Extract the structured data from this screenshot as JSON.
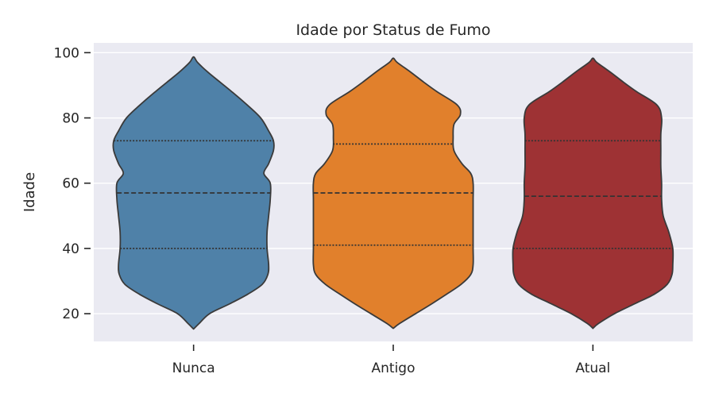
{
  "chart_data": {
    "type": "violin",
    "title": "Idade por Status de Fumo",
    "xlabel": "",
    "ylabel": "Idade",
    "ylim": [
      11.5,
      103
    ],
    "yticks": [
      20,
      40,
      60,
      80,
      100
    ],
    "grid": true,
    "legend": "none",
    "categories": [
      "Nunca",
      "Antigo",
      "Atual"
    ],
    "colors": [
      "#4f81a8",
      "#e1802c",
      "#9e3234"
    ],
    "series": [
      {
        "category": "Nunca",
        "min": 15.3,
        "max": 98.7,
        "quartiles": [
          40,
          57,
          73
        ],
        "profile": [
          [
            15.3,
            0
          ],
          [
            17,
            0.07
          ],
          [
            20,
            0.2
          ],
          [
            23,
            0.45
          ],
          [
            26,
            0.68
          ],
          [
            29,
            0.86
          ],
          [
            32,
            0.93
          ],
          [
            35,
            0.94
          ],
          [
            40,
            0.92
          ],
          [
            45,
            0.92
          ],
          [
            50,
            0.94
          ],
          [
            55,
            0.96
          ],
          [
            60,
            0.96
          ],
          [
            63,
            0.88
          ],
          [
            66,
            0.94
          ],
          [
            70,
            1.0
          ],
          [
            73,
            1.0
          ],
          [
            76,
            0.94
          ],
          [
            80,
            0.84
          ],
          [
            84,
            0.67
          ],
          [
            88,
            0.48
          ],
          [
            91,
            0.33
          ],
          [
            94,
            0.18
          ],
          [
            97,
            0.05
          ],
          [
            98.7,
            0
          ]
        ]
      },
      {
        "category": "Antigo",
        "min": 15.5,
        "max": 98.3,
        "quartiles": [
          41,
          57,
          72
        ],
        "profile": [
          [
            15.5,
            0
          ],
          [
            17,
            0.08
          ],
          [
            20,
            0.28
          ],
          [
            23,
            0.48
          ],
          [
            26,
            0.67
          ],
          [
            29,
            0.85
          ],
          [
            32,
            0.97
          ],
          [
            35,
            1.0
          ],
          [
            40,
            1.0
          ],
          [
            45,
            1.0
          ],
          [
            50,
            1.0
          ],
          [
            55,
            1.0
          ],
          [
            60,
            1.0
          ],
          [
            63,
            0.97
          ],
          [
            66,
            0.86
          ],
          [
            70,
            0.76
          ],
          [
            74,
            0.75
          ],
          [
            78,
            0.76
          ],
          [
            81,
            0.84
          ],
          [
            84,
            0.8
          ],
          [
            88,
            0.55
          ],
          [
            91,
            0.38
          ],
          [
            94,
            0.22
          ],
          [
            97,
            0.05
          ],
          [
            98.3,
            0
          ]
        ]
      },
      {
        "category": "Atual",
        "min": 15.5,
        "max": 98.3,
        "quartiles": [
          40,
          56,
          73
        ],
        "profile": [
          [
            15.5,
            0
          ],
          [
            17,
            0.07
          ],
          [
            20,
            0.27
          ],
          [
            23,
            0.52
          ],
          [
            26,
            0.77
          ],
          [
            29,
            0.93
          ],
          [
            32,
            0.99
          ],
          [
            35,
            1.0
          ],
          [
            40,
            1.0
          ],
          [
            45,
            0.95
          ],
          [
            50,
            0.88
          ],
          [
            55,
            0.86
          ],
          [
            60,
            0.86
          ],
          [
            65,
            0.85
          ],
          [
            70,
            0.85
          ],
          [
            75,
            0.85
          ],
          [
            80,
            0.86
          ],
          [
            84,
            0.8
          ],
          [
            88,
            0.55
          ],
          [
            91,
            0.38
          ],
          [
            94,
            0.22
          ],
          [
            97,
            0.05
          ],
          [
            98.3,
            0
          ]
        ]
      }
    ]
  }
}
